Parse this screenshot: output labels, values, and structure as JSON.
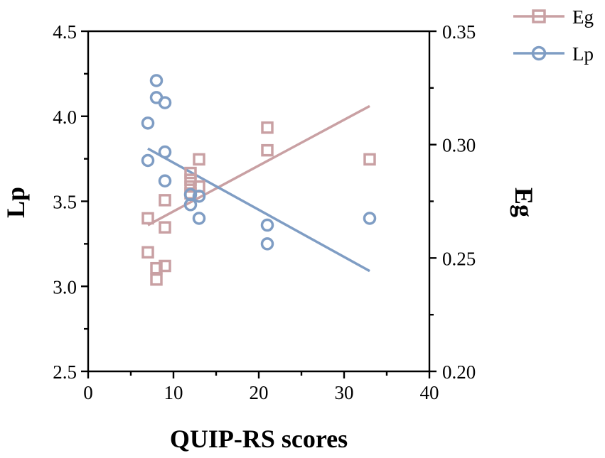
{
  "chart_data": {
    "type": "scatter",
    "xlabel": "QUIP-RS scores",
    "ylabel_left": "Lp",
    "ylabel_right": "Eg",
    "xlim": [
      0,
      40
    ],
    "ylim_left": [
      2.5,
      4.5
    ],
    "ylim_right": [
      0.2,
      0.35
    ],
    "x_ticks": [
      "0",
      "10",
      "20",
      "30",
      "40"
    ],
    "y_left_ticks": [
      "2.5",
      "3.0",
      "3.5",
      "4.0",
      "4.5"
    ],
    "y_right_ticks": [
      "0.20",
      "0.25",
      "0.30",
      "0.35"
    ],
    "legend_position": "top-right",
    "series": [
      {
        "name": "Eg",
        "axis": "right",
        "marker": "square",
        "color": "#c9a0a3",
        "points": [
          {
            "x": 7,
            "y": 0.2675
          },
          {
            "x": 7,
            "y": 0.2525
          },
          {
            "x": 8,
            "y": 0.2405
          },
          {
            "x": 8,
            "y": 0.2455
          },
          {
            "x": 9,
            "y": 0.2465
          },
          {
            "x": 9,
            "y": 0.2635
          },
          {
            "x": 9,
            "y": 0.2755
          },
          {
            "x": 12,
            "y": 0.2875
          },
          {
            "x": 12,
            "y": 0.2845
          },
          {
            "x": 12,
            "y": 0.2815
          },
          {
            "x": 12,
            "y": 0.2785
          },
          {
            "x": 13,
            "y": 0.2935
          },
          {
            "x": 13,
            "y": 0.2815
          },
          {
            "x": 21,
            "y": 0.3075
          },
          {
            "x": 21,
            "y": 0.2975
          },
          {
            "x": 33,
            "y": 0.2935
          }
        ],
        "fit": {
          "x": [
            7,
            33
          ],
          "y": [
            0.2645,
            0.317
          ]
        }
      },
      {
        "name": "Lp",
        "axis": "left",
        "marker": "circle",
        "color": "#7f9dc4",
        "points": [
          {
            "x": 7,
            "y": 3.96
          },
          {
            "x": 7,
            "y": 3.74
          },
          {
            "x": 8,
            "y": 4.21
          },
          {
            "x": 8,
            "y": 4.11
          },
          {
            "x": 9,
            "y": 4.08
          },
          {
            "x": 9,
            "y": 3.79
          },
          {
            "x": 9,
            "y": 3.62
          },
          {
            "x": 12,
            "y": 3.48
          },
          {
            "x": 12,
            "y": 3.54
          },
          {
            "x": 13,
            "y": 3.53
          },
          {
            "x": 13,
            "y": 3.4
          },
          {
            "x": 21,
            "y": 3.36
          },
          {
            "x": 21,
            "y": 3.25
          },
          {
            "x": 33,
            "y": 3.4
          }
        ],
        "fit": {
          "x": [
            7,
            33
          ],
          "y": [
            3.81,
            3.09
          ]
        }
      }
    ]
  }
}
